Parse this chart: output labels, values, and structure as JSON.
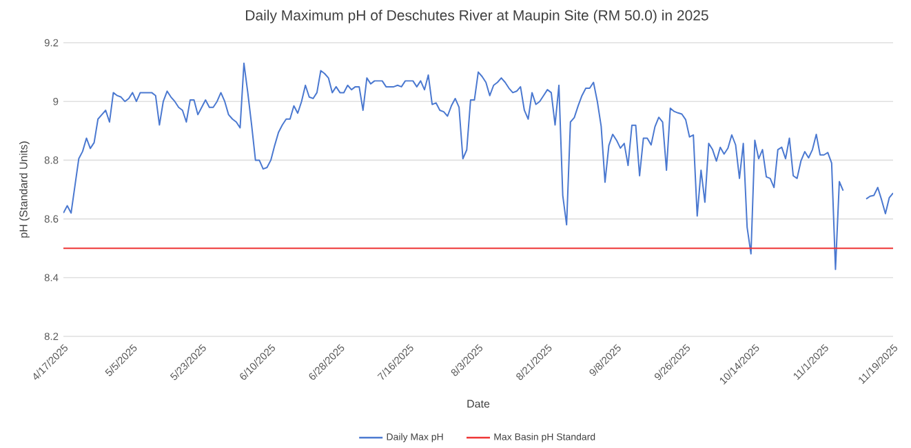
{
  "chart_data": {
    "type": "line",
    "title": "Daily Maximum pH of Deschutes River at Maupin Site (RM 50.0) in 2025",
    "xlabel": "Date",
    "ylabel": "pH (Standard Units)",
    "xlim": [
      "2025-04-17",
      "2025-11-19"
    ],
    "xticks": [
      {
        "value": "2025-04-17",
        "label": "4/17/2025"
      },
      {
        "value": "2025-05-05",
        "label": "5/5/2025"
      },
      {
        "value": "2025-05-23",
        "label": "5/23/2025"
      },
      {
        "value": "2025-06-10",
        "label": "6/10/2025"
      },
      {
        "value": "2025-06-28",
        "label": "6/28/2025"
      },
      {
        "value": "2025-07-16",
        "label": "7/16/2025"
      },
      {
        "value": "2025-08-03",
        "label": "8/3/2025"
      },
      {
        "value": "2025-08-21",
        "label": "8/21/2025"
      },
      {
        "value": "2025-09-08",
        "label": "9/8/2025"
      },
      {
        "value": "2025-09-26",
        "label": "9/26/2025"
      },
      {
        "value": "2025-10-14",
        "label": "10/14/2025"
      },
      {
        "value": "2025-11-01",
        "label": "11/1/2025"
      },
      {
        "value": "2025-11-19",
        "label": "11/19/2025"
      }
    ],
    "ylim": [
      8.2,
      9.2
    ],
    "yticks": [
      8.2,
      8.4,
      8.6,
      8.8,
      9,
      9.2
    ],
    "grid": "y",
    "legend": "bottom",
    "series": [
      {
        "name": "Daily Max pH",
        "color": "#4a78d0",
        "x": [
          "2025-04-17",
          "2025-04-18",
          "2025-04-19",
          "2025-04-21",
          "2025-04-22",
          "2025-04-23",
          "2025-04-24",
          "2025-04-25",
          "2025-04-26",
          "2025-04-27",
          "2025-04-28",
          "2025-04-29",
          "2025-04-30",
          "2025-05-01",
          "2025-05-02",
          "2025-05-03",
          "2025-05-04",
          "2025-05-05",
          "2025-05-06",
          "2025-05-07",
          "2025-05-08",
          "2025-05-09",
          "2025-05-10",
          "2025-05-11",
          "2025-05-12",
          "2025-05-13",
          "2025-05-14",
          "2025-05-15",
          "2025-05-16",
          "2025-05-17",
          "2025-05-18",
          "2025-05-19",
          "2025-05-20",
          "2025-05-21",
          "2025-05-22",
          "2025-05-23",
          "2025-05-24",
          "2025-05-25",
          "2025-05-26",
          "2025-05-27",
          "2025-05-28",
          "2025-05-29",
          "2025-05-30",
          "2025-05-31",
          "2025-06-01",
          "2025-06-02",
          "2025-06-03",
          "2025-06-04",
          "2025-06-05",
          "2025-06-06",
          "2025-06-07",
          "2025-06-08",
          "2025-06-09",
          "2025-06-10",
          "2025-06-11",
          "2025-06-12",
          "2025-06-13",
          "2025-06-14",
          "2025-06-15",
          "2025-06-16",
          "2025-06-17",
          "2025-06-18",
          "2025-06-19",
          "2025-06-20",
          "2025-06-21",
          "2025-06-22",
          "2025-06-23",
          "2025-06-24",
          "2025-06-25",
          "2025-06-26",
          "2025-06-27",
          "2025-06-28",
          "2025-06-29",
          "2025-06-30",
          "2025-07-01",
          "2025-07-02",
          "2025-07-03",
          "2025-07-04",
          "2025-07-05",
          "2025-07-06",
          "2025-07-07",
          "2025-07-08",
          "2025-07-09",
          "2025-07-10",
          "2025-07-11",
          "2025-07-12",
          "2025-07-13",
          "2025-07-14",
          "2025-07-15",
          "2025-07-16",
          "2025-07-17",
          "2025-07-18",
          "2025-07-19",
          "2025-07-20",
          "2025-07-21",
          "2025-07-22",
          "2025-07-23",
          "2025-07-24",
          "2025-07-25",
          "2025-07-26",
          "2025-07-27",
          "2025-07-28",
          "2025-07-29",
          "2025-07-30",
          "2025-07-31",
          "2025-08-01",
          "2025-08-02",
          "2025-08-03",
          "2025-08-04",
          "2025-08-05",
          "2025-08-06",
          "2025-08-07",
          "2025-08-08",
          "2025-08-09",
          "2025-08-10",
          "2025-08-11",
          "2025-08-12",
          "2025-08-13",
          "2025-08-14",
          "2025-08-15",
          "2025-08-16",
          "2025-08-17",
          "2025-08-18",
          "2025-08-19",
          "2025-08-20",
          "2025-08-21",
          "2025-08-22",
          "2025-08-23",
          "2025-08-24",
          "2025-08-25",
          "2025-08-26",
          "2025-08-27",
          "2025-08-28",
          "2025-08-29",
          "2025-08-30",
          "2025-08-31",
          "2025-09-01",
          "2025-09-02",
          "2025-09-03",
          "2025-09-04",
          "2025-09-05",
          "2025-09-06",
          "2025-09-07",
          "2025-09-08",
          "2025-09-09",
          "2025-09-10",
          "2025-09-11",
          "2025-09-12",
          "2025-09-13",
          "2025-09-14",
          "2025-09-15",
          "2025-09-16",
          "2025-09-17",
          "2025-09-18",
          "2025-09-19",
          "2025-09-20",
          "2025-09-21",
          "2025-09-22",
          "2025-09-23",
          "2025-09-24",
          "2025-09-25",
          "2025-09-26",
          "2025-09-27",
          "2025-09-28",
          "2025-09-29",
          "2025-09-30",
          "2025-10-01",
          "2025-10-02",
          "2025-10-03",
          "2025-10-04",
          "2025-10-05",
          "2025-10-06",
          "2025-10-07",
          "2025-10-08",
          "2025-10-09",
          "2025-10-10",
          "2025-10-11",
          "2025-10-12",
          "2025-10-13",
          "2025-10-14",
          "2025-10-15",
          "2025-10-16",
          "2025-10-17",
          "2025-10-18",
          "2025-10-19",
          "2025-10-20",
          "2025-10-21",
          "2025-10-22",
          "2025-10-23",
          "2025-10-24",
          "2025-10-25",
          "2025-10-26",
          "2025-10-27",
          "2025-10-28",
          "2025-10-29",
          "2025-10-30",
          "2025-10-31",
          "2025-11-01",
          "2025-11-02",
          "2025-11-03",
          "2025-11-04",
          "2025-11-05",
          "2025-11-06",
          "2025-11-07",
          "2025-11-12",
          "2025-11-13",
          "2025-11-14",
          "2025-11-15",
          "2025-11-16",
          "2025-11-17",
          "2025-11-18",
          "2025-11-19"
        ],
        "values": [
          8.62,
          8.645,
          8.62,
          8.805,
          8.83,
          8.875,
          8.84,
          8.86,
          8.94,
          8.955,
          8.97,
          8.93,
          9.03,
          9.02,
          9.015,
          9.0,
          9.01,
          9.03,
          9.0,
          9.03,
          9.03,
          9.03,
          9.03,
          9.02,
          8.92,
          9.0,
          9.035,
          9.015,
          9.0,
          8.98,
          8.97,
          8.93,
          9.005,
          9.005,
          8.955,
          8.98,
          9.005,
          8.98,
          8.98,
          9.0,
          9.03,
          9.0,
          8.955,
          8.94,
          8.93,
          8.91,
          9.13,
          9.03,
          8.92,
          8.8,
          8.8,
          8.77,
          8.775,
          8.8,
          8.85,
          8.895,
          8.92,
          8.94,
          8.94,
          8.985,
          8.96,
          9.0,
          9.055,
          9.015,
          9.01,
          9.03,
          9.105,
          9.095,
          9.08,
          9.03,
          9.05,
          9.03,
          9.03,
          9.055,
          9.04,
          9.05,
          9.05,
          8.97,
          9.08,
          9.06,
          9.07,
          9.07,
          9.07,
          9.05,
          9.05,
          9.05,
          9.055,
          9.05,
          9.07,
          9.07,
          9.07,
          9.05,
          9.07,
          9.04,
          9.09,
          8.99,
          8.995,
          8.97,
          8.965,
          8.95,
          8.985,
          9.01,
          8.98,
          8.805,
          8.835,
          9.005,
          9.005,
          9.1,
          9.085,
          9.065,
          9.02,
          9.055,
          9.065,
          9.08,
          9.065,
          9.045,
          9.03,
          9.035,
          9.05,
          8.97,
          8.94,
          9.03,
          8.99,
          9.0,
          9.02,
          9.04,
          9.03,
          8.92,
          9.055,
          8.68,
          8.58,
          8.93,
          8.945,
          8.985,
          9.02,
          9.045,
          9.045,
          9.065,
          9.0,
          8.915,
          8.725,
          8.85,
          8.888,
          8.868,
          8.841,
          8.857,
          8.782,
          8.919,
          8.919,
          8.747,
          8.875,
          8.875,
          8.852,
          8.914,
          8.946,
          8.93,
          8.766,
          8.977,
          8.966,
          8.961,
          8.957,
          8.938,
          8.879,
          8.886,
          8.61,
          8.766,
          8.657,
          8.857,
          8.836,
          8.797,
          8.844,
          8.821,
          8.841,
          8.886,
          8.852,
          8.738,
          8.857,
          8.571,
          8.481,
          8.868,
          8.805,
          8.836,
          8.743,
          8.738,
          8.707,
          8.836,
          8.844,
          8.805,
          8.875,
          8.747,
          8.738,
          8.797,
          8.829,
          8.808,
          8.836,
          8.888,
          8.818,
          8.818,
          8.826,
          8.79,
          8.428,
          8.727,
          8.696,
          null,
          8.668,
          8.677,
          8.68,
          8.707,
          8.665,
          8.618,
          8.672,
          8.688
        ]
      },
      {
        "name": "Max Basin pH Standard",
        "color": "#ee3333",
        "x": [
          "2025-04-17",
          "2025-11-19"
        ],
        "values": [
          8.5,
          8.5
        ]
      }
    ]
  }
}
